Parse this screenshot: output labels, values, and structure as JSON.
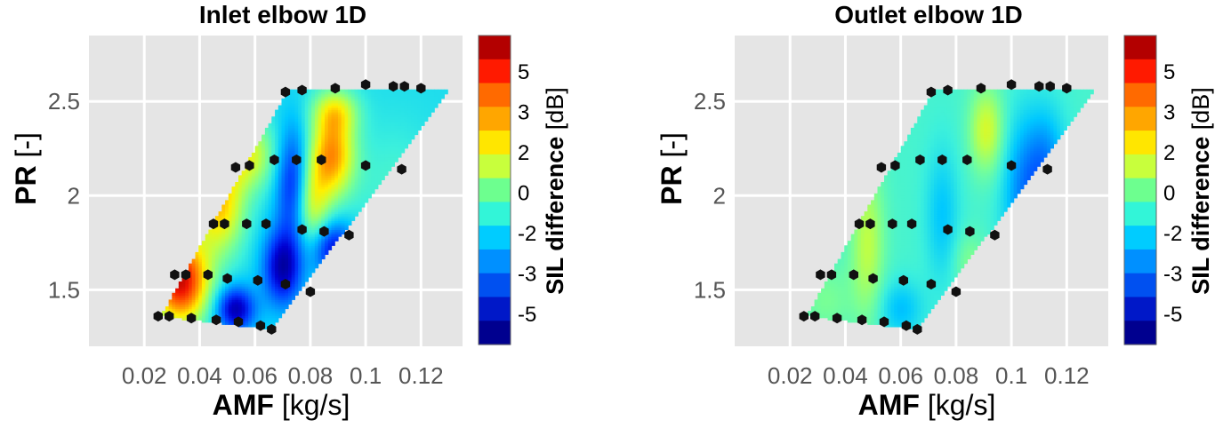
{
  "chart_data": [
    {
      "type": "heatmap",
      "title": "Inlet elbow 1D",
      "xlabel_bold": "AMF",
      "xlabel_unit": " [kg/s]",
      "ylabel_bold": "PR",
      "ylabel_unit": " [-]",
      "colorbar_label_bold": "SIL difference",
      "colorbar_label_unit": " [dB]",
      "xlim": [
        0.0,
        0.135
      ],
      "ylim": [
        1.2,
        2.85
      ],
      "grid": true,
      "xticks": [
        {
          "v": 0.02,
          "label": "0.02"
        },
        {
          "v": 0.04,
          "label": "0.04"
        },
        {
          "v": 0.06,
          "label": "0.06"
        },
        {
          "v": 0.08,
          "label": "0.08"
        },
        {
          "v": 0.1,
          "label": "0.1"
        },
        {
          "v": 0.12,
          "label": "0.12"
        }
      ],
      "yticks": [
        {
          "v": 1.5,
          "label": "1.5"
        },
        {
          "v": 2.0,
          "label": "2"
        },
        {
          "v": 2.5,
          "label": "2.5"
        }
      ],
      "colorbar_ticks": [
        "5",
        "3",
        "2",
        "0",
        "-2",
        "-3",
        "-5"
      ],
      "colorbar_colors": [
        "#b30000",
        "#ff1a00",
        "#ff6a00",
        "#ffa600",
        "#ffe600",
        "#c8ff3c",
        "#6dff8f",
        "#32f5d8",
        "#00ccff",
        "#0090ff",
        "#0050f0",
        "#0018c8",
        "#00008f"
      ],
      "domain_polygon": [
        [
          0.026,
          1.36
        ],
        [
          0.066,
          1.29
        ],
        [
          0.13,
          2.56
        ],
        [
          0.072,
          2.56
        ]
      ],
      "field_label": "SIL difference [dB] (range about -6 to 6)",
      "measurement_points": [
        {
          "x": 0.025,
          "y": 1.36
        },
        {
          "x": 0.029,
          "y": 1.36
        },
        {
          "x": 0.037,
          "y": 1.35
        },
        {
          "x": 0.046,
          "y": 1.34
        },
        {
          "x": 0.054,
          "y": 1.33
        },
        {
          "x": 0.062,
          "y": 1.31
        },
        {
          "x": 0.066,
          "y": 1.29
        },
        {
          "x": 0.031,
          "y": 1.58
        },
        {
          "x": 0.035,
          "y": 1.58
        },
        {
          "x": 0.043,
          "y": 1.58
        },
        {
          "x": 0.05,
          "y": 1.56
        },
        {
          "x": 0.061,
          "y": 1.55
        },
        {
          "x": 0.071,
          "y": 1.53
        },
        {
          "x": 0.08,
          "y": 1.49
        },
        {
          "x": 0.045,
          "y": 1.85
        },
        {
          "x": 0.049,
          "y": 1.85
        },
        {
          "x": 0.057,
          "y": 1.85
        },
        {
          "x": 0.064,
          "y": 1.85
        },
        {
          "x": 0.077,
          "y": 1.82
        },
        {
          "x": 0.085,
          "y": 1.81
        },
        {
          "x": 0.094,
          "y": 1.79
        },
        {
          "x": 0.053,
          "y": 2.15
        },
        {
          "x": 0.058,
          "y": 2.16
        },
        {
          "x": 0.067,
          "y": 2.19
        },
        {
          "x": 0.075,
          "y": 2.19
        },
        {
          "x": 0.084,
          "y": 2.19
        },
        {
          "x": 0.1,
          "y": 2.16
        },
        {
          "x": 0.113,
          "y": 2.14
        },
        {
          "x": 0.071,
          "y": 2.55
        },
        {
          "x": 0.077,
          "y": 2.56
        },
        {
          "x": 0.089,
          "y": 2.57
        },
        {
          "x": 0.1,
          "y": 2.59
        },
        {
          "x": 0.11,
          "y": 2.58
        },
        {
          "x": 0.114,
          "y": 2.58
        },
        {
          "x": 0.12,
          "y": 2.57
        }
      ]
    },
    {
      "type": "heatmap",
      "title": "Outlet elbow 1D",
      "xlabel_bold": "AMF",
      "xlabel_unit": " [kg/s]",
      "ylabel_bold": "PR",
      "ylabel_unit": " [-]",
      "colorbar_label_bold": "SIL difference",
      "colorbar_label_unit": " [dB]",
      "xlim": [
        0.0,
        0.135
      ],
      "ylim": [
        1.2,
        2.85
      ],
      "grid": true,
      "xticks": [
        {
          "v": 0.02,
          "label": "0.02"
        },
        {
          "v": 0.04,
          "label": "0.04"
        },
        {
          "v": 0.06,
          "label": "0.06"
        },
        {
          "v": 0.08,
          "label": "0.08"
        },
        {
          "v": 0.1,
          "label": "0.1"
        },
        {
          "v": 0.12,
          "label": "0.12"
        }
      ],
      "yticks": [
        {
          "v": 1.5,
          "label": "1.5"
        },
        {
          "v": 2.0,
          "label": "2"
        },
        {
          "v": 2.5,
          "label": "2.5"
        }
      ],
      "colorbar_ticks": [
        "5",
        "3",
        "2",
        "0",
        "-2",
        "-3",
        "-5"
      ],
      "colorbar_colors": [
        "#b30000",
        "#ff1a00",
        "#ff6a00",
        "#ffa600",
        "#ffe600",
        "#c8ff3c",
        "#6dff8f",
        "#32f5d8",
        "#00ccff",
        "#0090ff",
        "#0050f0",
        "#0018c8",
        "#00008f"
      ],
      "domain_polygon": [
        [
          0.026,
          1.36
        ],
        [
          0.066,
          1.29
        ],
        [
          0.13,
          2.56
        ],
        [
          0.072,
          2.56
        ]
      ],
      "field_label": "SIL difference [dB] (range about -4 to 2)",
      "measurement_points": [
        {
          "x": 0.025,
          "y": 1.36
        },
        {
          "x": 0.029,
          "y": 1.36
        },
        {
          "x": 0.037,
          "y": 1.35
        },
        {
          "x": 0.046,
          "y": 1.34
        },
        {
          "x": 0.054,
          "y": 1.33
        },
        {
          "x": 0.062,
          "y": 1.31
        },
        {
          "x": 0.066,
          "y": 1.29
        },
        {
          "x": 0.031,
          "y": 1.58
        },
        {
          "x": 0.035,
          "y": 1.58
        },
        {
          "x": 0.043,
          "y": 1.58
        },
        {
          "x": 0.05,
          "y": 1.56
        },
        {
          "x": 0.061,
          "y": 1.55
        },
        {
          "x": 0.071,
          "y": 1.53
        },
        {
          "x": 0.08,
          "y": 1.49
        },
        {
          "x": 0.045,
          "y": 1.85
        },
        {
          "x": 0.049,
          "y": 1.85
        },
        {
          "x": 0.057,
          "y": 1.85
        },
        {
          "x": 0.064,
          "y": 1.85
        },
        {
          "x": 0.077,
          "y": 1.82
        },
        {
          "x": 0.085,
          "y": 1.81
        },
        {
          "x": 0.094,
          "y": 1.79
        },
        {
          "x": 0.053,
          "y": 2.15
        },
        {
          "x": 0.058,
          "y": 2.16
        },
        {
          "x": 0.067,
          "y": 2.19
        },
        {
          "x": 0.075,
          "y": 2.19
        },
        {
          "x": 0.084,
          "y": 2.19
        },
        {
          "x": 0.1,
          "y": 2.16
        },
        {
          "x": 0.113,
          "y": 2.14
        },
        {
          "x": 0.071,
          "y": 2.55
        },
        {
          "x": 0.077,
          "y": 2.56
        },
        {
          "x": 0.089,
          "y": 2.57
        },
        {
          "x": 0.1,
          "y": 2.59
        },
        {
          "x": 0.11,
          "y": 2.58
        },
        {
          "x": 0.114,
          "y": 2.58
        },
        {
          "x": 0.12,
          "y": 2.57
        }
      ]
    }
  ]
}
